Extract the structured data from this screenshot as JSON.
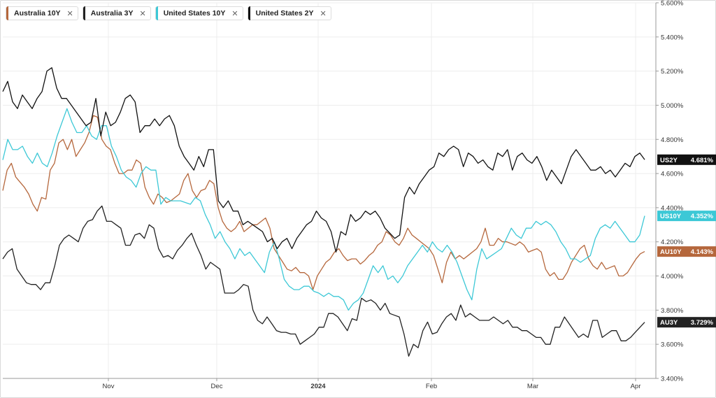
{
  "chart_data": {
    "type": "line",
    "title": "",
    "xlabel": "",
    "ylabel": "",
    "x_tick_labels": [
      "Nov",
      "Dec",
      "2024",
      "Feb",
      "Mar",
      "Apr"
    ],
    "y_tick_labels": [
      "3.400%",
      "3.600%",
      "3.800%",
      "4.000%",
      "4.200%",
      "4.400%",
      "4.600%",
      "4.800%",
      "5.000%",
      "5.200%",
      "5.400%",
      "5.600%"
    ],
    "ylim": [
      3.4,
      5.6
    ],
    "grid": true,
    "legend_placement": "top-left",
    "series": [
      {
        "name": "Australia 10Y",
        "tag": "AU10Y",
        "last_value": "4.143%",
        "color": "#b5673c",
        "values": [
          4.5,
          4.62,
          4.66,
          4.58,
          4.55,
          4.52,
          4.48,
          4.42,
          4.38,
          4.46,
          4.45,
          4.62,
          4.66,
          4.78,
          4.8,
          4.74,
          4.8,
          4.7,
          4.74,
          4.78,
          4.84,
          4.94,
          4.93,
          4.8,
          4.76,
          4.74,
          4.66,
          4.6,
          4.6,
          4.62,
          4.62,
          4.68,
          4.66,
          4.52,
          4.46,
          4.42,
          4.48,
          4.46,
          4.43,
          4.44,
          4.46,
          4.48,
          4.56,
          4.6,
          4.5,
          4.46,
          4.5,
          4.51,
          4.56,
          4.54,
          4.4,
          4.32,
          4.28,
          4.26,
          4.28,
          4.32,
          4.26,
          4.28,
          4.3,
          4.3,
          4.32,
          4.34,
          4.28,
          4.16,
          4.12,
          4.08,
          4.04,
          4.03,
          4.05,
          4.02,
          4.02,
          4,
          3.92,
          4,
          4.04,
          4.08,
          4.1,
          4.14,
          4.16,
          4.12,
          4.09,
          4.1,
          4.1,
          4.07,
          4.09,
          4.12,
          4.14,
          4.18,
          4.2,
          4.26,
          4.24,
          4.2,
          4.18,
          4.22,
          4.28,
          4.24,
          4.22,
          4.2,
          4.18,
          4.16,
          4.12,
          4.04,
          3.96,
          4.08,
          4.14,
          4.1,
          4.12,
          4.1,
          4.12,
          4.14,
          4.16,
          4.2,
          4.28,
          4.18,
          4.18,
          4.22,
          4.2,
          4.2,
          4.19,
          4.18,
          4.2,
          4.18,
          4.14,
          4.15,
          4.16,
          4.14,
          4.04,
          4,
          4.02,
          3.98,
          3.98,
          4.02,
          4.08,
          4.12,
          4.16,
          4.18,
          4.1,
          4.06,
          4.04,
          4.08,
          4.04,
          4.05,
          4.06,
          4,
          4,
          4.02,
          4.06,
          4.1,
          4.13,
          4.143
        ]
      },
      {
        "name": "Australia 3Y",
        "tag": "AU3Y",
        "last_value": "3.729%",
        "color": "#222222",
        "values": [
          4.1,
          4.14,
          4.16,
          4.04,
          4,
          3.96,
          3.95,
          3.95,
          3.92,
          3.96,
          3.96,
          4.06,
          4.18,
          4.22,
          4.24,
          4.22,
          4.2,
          4.28,
          4.32,
          4.33,
          4.38,
          4.41,
          4.32,
          4.32,
          4.3,
          4.28,
          4.18,
          4.18,
          4.24,
          4.25,
          4.22,
          4.3,
          4.28,
          4.16,
          4.11,
          4.12,
          4.1,
          4.15,
          4.18,
          4.22,
          4.25,
          4.18,
          4.12,
          4.04,
          4.08,
          4.06,
          4.04,
          3.9,
          3.9,
          3.9,
          3.92,
          3.95,
          3.94,
          3.8,
          3.74,
          3.72,
          3.76,
          3.72,
          3.68,
          3.67,
          3.67,
          3.66,
          3.66,
          3.6,
          3.62,
          3.64,
          3.66,
          3.7,
          3.7,
          3.78,
          3.78,
          3.76,
          3.72,
          3.68,
          3.75,
          3.74,
          3.87,
          3.85,
          3.86,
          3.84,
          3.8,
          3.84,
          3.78,
          3.77,
          3.76,
          3.66,
          3.53,
          3.6,
          3.58,
          3.68,
          3.73,
          3.66,
          3.67,
          3.72,
          3.76,
          3.78,
          3.74,
          3.83,
          3.76,
          3.78,
          3.76,
          3.74,
          3.74,
          3.74,
          3.76,
          3.74,
          3.72,
          3.74,
          3.7,
          3.7,
          3.68,
          3.68,
          3.66,
          3.64,
          3.64,
          3.6,
          3.6,
          3.7,
          3.7,
          3.76,
          3.72,
          3.68,
          3.64,
          3.66,
          3.64,
          3.74,
          3.74,
          3.64,
          3.66,
          3.68,
          3.68,
          3.62,
          3.62,
          3.64,
          3.67,
          3.7,
          3.729
        ]
      },
      {
        "name": "United States 10Y",
        "tag": "US10Y",
        "last_value": "4.352%",
        "color": "#3cc8d6",
        "values": [
          4.68,
          4.8,
          4.74,
          4.74,
          4.76,
          4.7,
          4.66,
          4.72,
          4.66,
          4.64,
          4.72,
          4.82,
          4.9,
          4.98,
          4.9,
          4.84,
          4.84,
          4.88,
          4.82,
          4.8,
          4.88,
          4.88,
          4.76,
          4.7,
          4.62,
          4.58,
          4.56,
          4.52,
          4.6,
          4.64,
          4.62,
          4.62,
          4.42,
          4.46,
          4.44,
          4.44,
          4.44,
          4.43,
          4.42,
          4.46,
          4.44,
          4.36,
          4.3,
          4.22,
          4.26,
          4.2,
          4.16,
          4.1,
          4.16,
          4.12,
          4.14,
          4.1,
          4.06,
          4.02,
          4.14,
          4.2,
          4.1,
          3.98,
          3.94,
          3.92,
          3.92,
          3.94,
          3.94,
          3.91,
          3.9,
          3.88,
          3.9,
          3.88,
          3.88,
          3.86,
          3.8,
          3.84,
          3.86,
          3.9,
          3.98,
          4.06,
          4.02,
          4.06,
          3.98,
          4,
          3.96,
          4,
          4.06,
          4.1,
          4.14,
          4.18,
          4.14,
          4.2,
          4.16,
          4.14,
          4.18,
          4.14,
          4.08,
          4,
          3.92,
          3.86,
          4.04,
          4.16,
          4.1,
          4.12,
          4.14,
          4.16,
          4.22,
          4.28,
          4.24,
          4.22,
          4.28,
          4.28,
          4.32,
          4.3,
          4.32,
          4.3,
          4.26,
          4.2,
          4.16,
          4.1,
          4.1,
          4.08,
          4.1,
          4.12,
          4.22,
          4.28,
          4.3,
          4.28,
          4.32,
          4.28,
          4.24,
          4.2,
          4.2,
          4.24,
          4.352
        ]
      },
      {
        "name": "United States 2Y",
        "tag": "US2Y",
        "last_value": "4.681%",
        "color": "#111111",
        "values": [
          5.08,
          5.14,
          5.02,
          4.98,
          5.06,
          5.02,
          4.98,
          5.04,
          5.08,
          5.2,
          5.22,
          5.1,
          5.04,
          5.04,
          5,
          4.96,
          4.92,
          4.88,
          4.9,
          5.04,
          4.82,
          4.96,
          4.88,
          4.9,
          4.96,
          5.04,
          5.06,
          5.02,
          4.84,
          4.88,
          4.88,
          4.92,
          4.88,
          4.92,
          4.94,
          4.88,
          4.76,
          4.7,
          4.66,
          4.62,
          4.7,
          4.64,
          4.74,
          4.74,
          4.44,
          4.4,
          4.44,
          4.38,
          4.38,
          4.3,
          4.32,
          4.3,
          4.28,
          4.26,
          4.2,
          4.22,
          4.16,
          4.2,
          4.22,
          4.16,
          4.22,
          4.26,
          4.3,
          4.32,
          4.38,
          4.34,
          4.32,
          4.26,
          4.14,
          4.26,
          4.24,
          4.36,
          4.32,
          4.34,
          4.38,
          4.36,
          4.38,
          4.34,
          4.28,
          4.25,
          4.22,
          4.24,
          4.46,
          4.52,
          4.48,
          4.54,
          4.58,
          4.62,
          4.64,
          4.72,
          4.7,
          4.74,
          4.76,
          4.74,
          4.64,
          4.72,
          4.7,
          4.66,
          4.68,
          4.64,
          4.62,
          4.72,
          4.7,
          4.74,
          4.62,
          4.7,
          4.72,
          4.68,
          4.66,
          4.7,
          4.64,
          4.56,
          4.62,
          4.58,
          4.54,
          4.62,
          4.7,
          4.74,
          4.7,
          4.66,
          4.62,
          4.62,
          4.64,
          4.6,
          4.62,
          4.58,
          4.62,
          4.66,
          4.64,
          4.7,
          4.72,
          4.681
        ]
      }
    ]
  }
}
